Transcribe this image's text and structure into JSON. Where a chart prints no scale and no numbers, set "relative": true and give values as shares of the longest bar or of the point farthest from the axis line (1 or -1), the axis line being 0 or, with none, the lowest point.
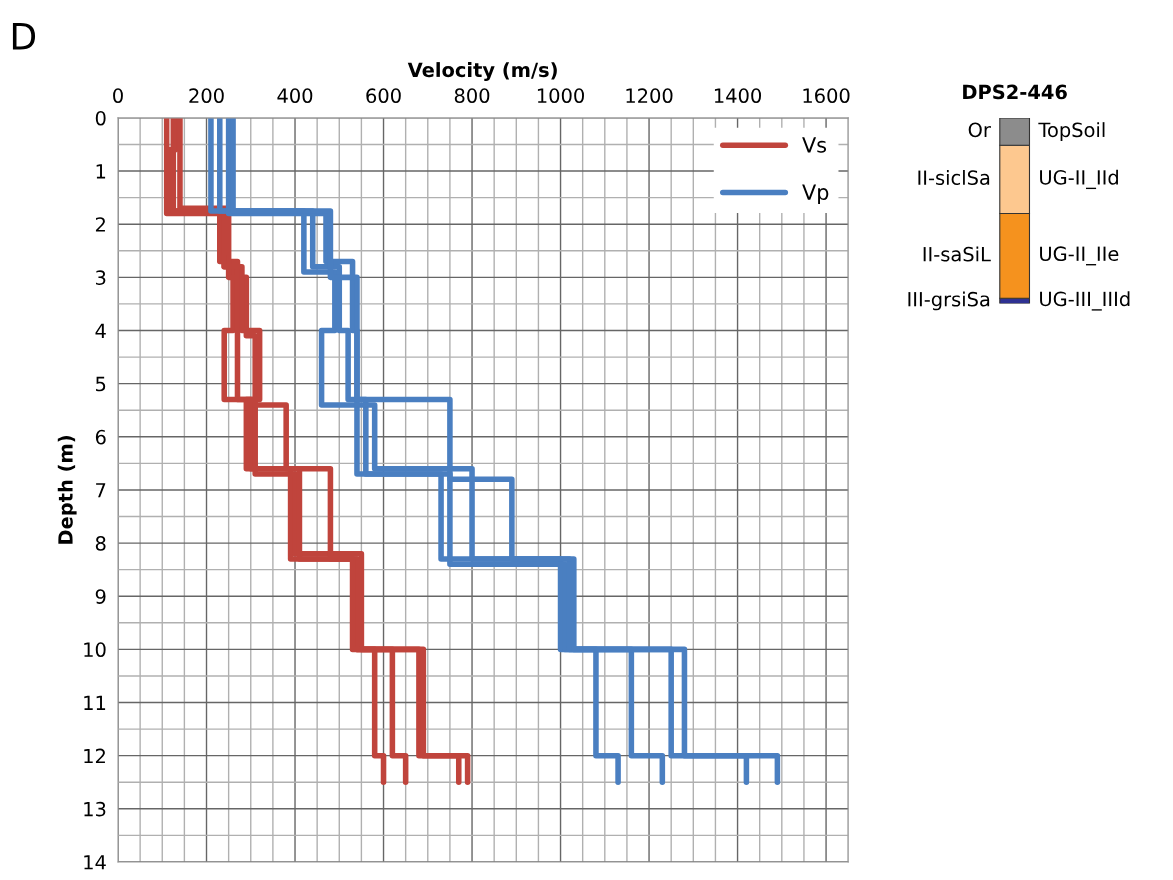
{
  "chart_data": [
    {
      "type": "line",
      "title": "D",
      "xlabel": "Velocity (m/s)",
      "ylabel": "Depth (m)",
      "xlim": [
        0,
        1650
      ],
      "ylim": [
        14,
        0
      ],
      "xticks": [
        0,
        {
          "value": 50,
          "label": null
        },
        {
          "value": 100,
          "label": null
        },
        {
          "value": 150,
          "label": null
        },
        200,
        {
          "value": 250,
          "label": null
        },
        {
          "value": 300,
          "label": null
        },
        {
          "value": 350,
          "label": null
        },
        400,
        {
          "value": 450,
          "label": null
        },
        {
          "value": 500,
          "label": null
        },
        {
          "value": 550,
          "label": null
        },
        600,
        {
          "value": 650,
          "label": null
        },
        {
          "value": 700,
          "label": null
        },
        {
          "value": 750,
          "label": null
        },
        800,
        {
          "value": 850,
          "label": null
        },
        {
          "value": 900,
          "label": null
        },
        {
          "value": 950,
          "label": null
        },
        1000,
        {
          "value": 1050,
          "label": null
        },
        {
          "value": 1100,
          "label": null
        },
        {
          "value": 1150,
          "label": null
        },
        1200,
        {
          "value": 1250,
          "label": null
        },
        {
          "value": 1300,
          "label": null
        },
        {
          "value": 1350,
          "label": null
        },
        1400,
        {
          "value": 1450,
          "label": null
        },
        {
          "value": 1500,
          "label": null
        },
        {
          "value": 1550,
          "label": null
        },
        1600,
        {
          "value": 1650,
          "label": null
        }
      ],
      "yticks": [
        0,
        {
          "value": 0.5,
          "label": null
        },
        1,
        {
          "value": 1.5,
          "label": null
        },
        2,
        {
          "value": 2.5,
          "label": null
        },
        3,
        {
          "value": 3.5,
          "label": null
        },
        4,
        {
          "value": 4.5,
          "label": null
        },
        5,
        {
          "value": 5.5,
          "label": null
        },
        6,
        {
          "value": 6.5,
          "label": null
        },
        7,
        {
          "value": 7.5,
          "label": null
        },
        8,
        {
          "value": 8.5,
          "label": null
        },
        9,
        {
          "value": 9.5,
          "label": null
        },
        10,
        {
          "value": 10.5,
          "label": null
        },
        11,
        {
          "value": 11.5,
          "label": null
        },
        12,
        {
          "value": 12.5,
          "label": null
        },
        13,
        {
          "value": 13.5,
          "label": null
        },
        14
      ],
      "grid": true,
      "legend": "top right",
      "line_style": "solid",
      "marker": "none",
      "series": [
        {
          "name": "Vs",
          "color": "#c0443c",
          "x": [
            110,
            110,
            240,
            240,
            260,
            260,
            240,
            240,
            300,
            300,
            390,
            390,
            540,
            540,
            580,
            580,
            600,
            600
          ],
          "values": [
            0,
            1.8,
            1.8,
            2.8,
            2.8,
            4.0,
            4.0,
            5.3,
            5.3,
            6.6,
            6.6,
            8.3,
            8.3,
            10.0,
            10.0,
            12.0,
            12.0,
            12.5
          ]
        },
        {
          "color": "#c0443c",
          "x": [
            130,
            130,
            115,
            115,
            230,
            230,
            270,
            270,
            310,
            310,
            400,
            400,
            550,
            550,
            620,
            620,
            650,
            650
          ],
          "values": [
            0,
            0.6,
            0.6,
            1.75,
            1.75,
            2.7,
            2.7,
            5.3,
            5.3,
            6.7,
            6.7,
            8.2,
            8.2,
            10.0,
            10.0,
            12.0,
            12.0,
            12.5
          ]
        },
        {
          "color": "#c0443c",
          "x": [
            140,
            140,
            250,
            250,
            290,
            290,
            310,
            310,
            380,
            380,
            480,
            480,
            540,
            540,
            680,
            680,
            770,
            770
          ],
          "values": [
            0,
            1.7,
            1.7,
            3.0,
            3.0,
            4.1,
            4.1,
            5.4,
            5.4,
            6.6,
            6.6,
            8.3,
            8.3,
            10.0,
            10.0,
            12.0,
            12.0,
            12.5
          ]
        },
        {
          "color": "#c0443c",
          "x": [
            125,
            125,
            240,
            240,
            280,
            280,
            320,
            320,
            290,
            290,
            410,
            410,
            530,
            530,
            690,
            690,
            790,
            790
          ],
          "values": [
            0,
            1.75,
            1.75,
            2.8,
            2.8,
            4.0,
            4.0,
            5.3,
            5.3,
            6.6,
            6.6,
            8.3,
            8.3,
            10.0,
            10.0,
            12.0,
            12.0,
            12.5
          ]
        },
        {
          "name": "Vp",
          "color": "#4a7fc1",
          "x": [
            210,
            210,
            420,
            420,
            490,
            490,
            460,
            460,
            540,
            540,
            730,
            730,
            1000,
            1000,
            1080,
            1080,
            1130,
            1130
          ],
          "values": [
            0,
            1.75,
            1.75,
            2.9,
            2.9,
            4.0,
            4.0,
            5.4,
            5.4,
            6.7,
            6.7,
            8.3,
            8.3,
            10.0,
            10.0,
            12.0,
            12.0,
            12.5
          ]
        },
        {
          "color": "#4a7fc1",
          "x": [
            230,
            230,
            440,
            440,
            500,
            500,
            520,
            520,
            560,
            560,
            750,
            750,
            1010,
            1010,
            1160,
            1160,
            1230,
            1230
          ],
          "values": [
            0,
            1.75,
            1.75,
            2.8,
            2.8,
            4.0,
            4.0,
            5.3,
            5.3,
            6.7,
            6.7,
            8.4,
            8.4,
            10.0,
            10.0,
            12.0,
            12.0,
            12.5
          ]
        },
        {
          "color": "#4a7fc1",
          "x": [
            250,
            250,
            470,
            470,
            530,
            530,
            540,
            540,
            580,
            580,
            800,
            800,
            1020,
            1020,
            1250,
            1250,
            1420,
            1420
          ],
          "values": [
            0,
            1.8,
            1.8,
            2.7,
            2.7,
            4.0,
            4.0,
            5.4,
            5.4,
            6.6,
            6.6,
            8.3,
            8.3,
            10.0,
            10.0,
            12.0,
            12.0,
            12.5
          ]
        },
        {
          "color": "#4a7fc1",
          "x": [
            260,
            260,
            480,
            480,
            540,
            540,
            540,
            540,
            750,
            750,
            890,
            890,
            1030,
            1030,
            1280,
            1280,
            1490,
            1490
          ],
          "values": [
            0,
            1.75,
            1.75,
            3.0,
            3.0,
            3.9,
            3.9,
            5.3,
            5.3,
            6.8,
            6.8,
            8.3,
            8.3,
            10.0,
            10.0,
            12.0,
            12.0,
            12.5
          ]
        }
      ]
    },
    {
      "type": "bar",
      "title": "DPS2-446",
      "stacked": true,
      "relative": true,
      "categories": [
        null
      ],
      "series": [
        {
          "name": "III-grsiSa",
          "color": "#2e3192",
          "values": [
            0.029
          ]
        },
        {
          "name": "II-saSiL",
          "color": "#f5921e",
          "values": [
            0.456
          ]
        },
        {
          "name": "II-siclSa",
          "color": "#fdc88f",
          "values": [
            0.368
          ]
        },
        {
          "name": "Or",
          "color": "#8c8c8c",
          "values": [
            0.147
          ]
        }
      ],
      "annotations": [
        "UG-III_IIId",
        "UG-II_IIe",
        "UG-II_IId",
        "TopSoil"
      ]
    }
  ]
}
